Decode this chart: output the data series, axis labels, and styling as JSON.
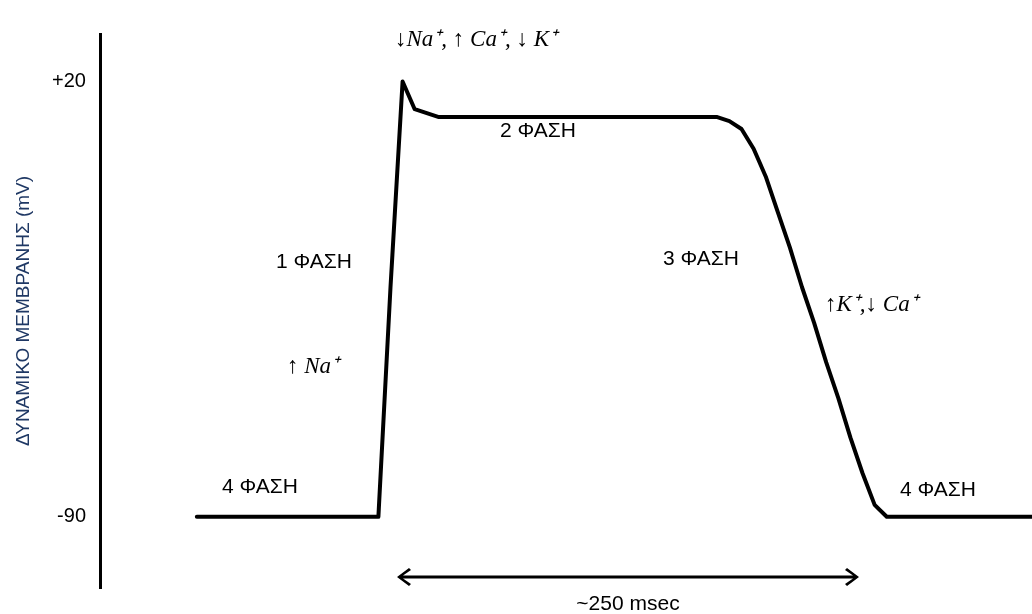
{
  "chart_data": {
    "type": "line",
    "ylabel": "ΔΥΝΑΜΙΚΟ ΜΕΜΒΡΑΝΗΣ (mV)",
    "categories": [
      null,
      null,
      null,
      null,
      null,
      null,
      null,
      null,
      null,
      null,
      null,
      null,
      null,
      null,
      null,
      null,
      null,
      null,
      null,
      null,
      null,
      null,
      null,
      null,
      null,
      null,
      null,
      null,
      null,
      null,
      null,
      null,
      null,
      null,
      null,
      null,
      null,
      null,
      null,
      null,
      null,
      null,
      null,
      null,
      null,
      null,
      null,
      null,
      null,
      null,
      null,
      null,
      null,
      null,
      null,
      null,
      null,
      null,
      null,
      null,
      null,
      null,
      null,
      null,
      null,
      null,
      null,
      null,
      null,
      null,
      null,
      null,
      null,
      null,
      null,
      null,
      null,
      null
    ],
    "series": [
      {
        "color": "#000000",
        "values": [
          null,
          null,
          null,
          null,
          null,
          null,
          null,
          null,
          -90,
          -90,
          -90,
          -90,
          -90,
          -90,
          -90,
          -90,
          -90,
          -90,
          -90,
          -90,
          -90,
          -90,
          -90,
          -90,
          -32,
          20,
          13,
          12,
          11,
          11,
          11,
          11,
          11,
          11,
          11,
          11,
          11,
          11,
          11,
          11,
          11,
          11,
          11,
          11,
          11,
          11,
          11,
          11,
          11,
          11,
          11,
          11,
          10,
          8,
          3,
          -4,
          -13,
          -22,
          -32,
          -41,
          -51,
          -60,
          -70,
          -79,
          -87,
          -90,
          -90,
          -90,
          -90,
          -90,
          -90,
          -90,
          -90,
          -90,
          -90,
          -90,
          -90,
          -90
        ]
      }
    ],
    "ylim": [
      -108,
      32
    ],
    "yticks": [
      {
        "value": 20,
        "label": "+20"
      },
      -90
    ],
    "tick_labels": "y",
    "grid": false,
    "legend": false,
    "marker": "none",
    "line_style": "solid",
    "annotations": [
      "↓Na⁺, ↑ Ca⁺, ↓ K⁺",
      "1 ΦΑΣΗ",
      "↑ Na⁺",
      "2 ΦΑΣΗ",
      "3 ΦΑΣΗ",
      "↑K⁺,↓ Ca⁺",
      "4 ΦΑΣΗ",
      "4 ΦΑΣΗ",
      "~250 msec"
    ]
  }
}
